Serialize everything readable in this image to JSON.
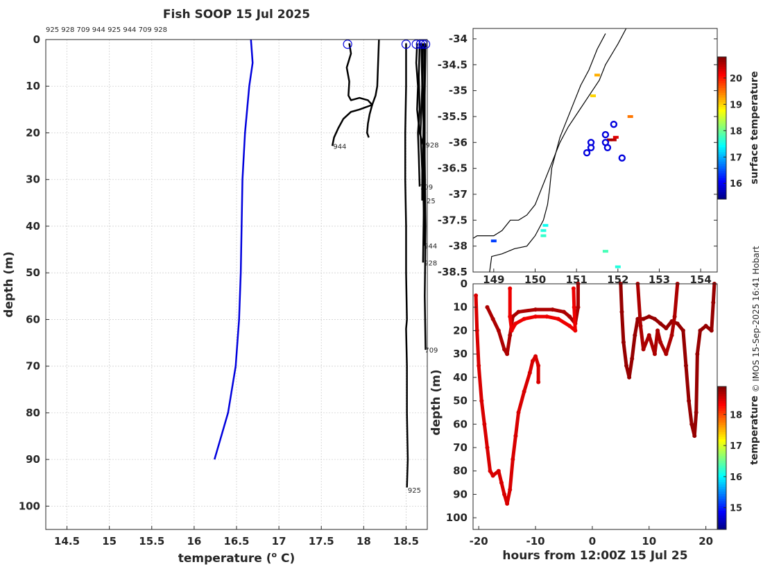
{
  "figure": {
    "credit": "© IMOS 15-Sep-2025 16:41 Hobart"
  },
  "chart_data": [
    {
      "id": "profile",
      "type": "line",
      "title": "Fish SOOP 15 Jul 2025",
      "top_id_list": "925 928 709 944 925 944 709 928",
      "xlabel": "temperature (",
      "xlabel_sup": "o",
      "xlabel_end": " C)",
      "ylabel": "depth (m)",
      "xlim": [
        14.25,
        18.75
      ],
      "ylim": [
        105,
        0
      ],
      "xticks": [
        14.5,
        15,
        15.5,
        16,
        16.5,
        17,
        17.5,
        18,
        18.5
      ],
      "yticks": [
        0,
        10,
        20,
        30,
        40,
        50,
        60,
        70,
        80,
        90,
        100
      ],
      "grid": true,
      "reference_profile": {
        "color": "#0000dd",
        "points": [
          [
            16.67,
            0
          ],
          [
            16.69,
            5
          ],
          [
            16.65,
            10
          ],
          [
            16.6,
            20
          ],
          [
            16.57,
            30
          ],
          [
            16.56,
            40
          ],
          [
            16.55,
            50
          ],
          [
            16.53,
            60
          ],
          [
            16.49,
            70
          ],
          [
            16.4,
            80
          ],
          [
            16.24,
            90
          ]
        ]
      },
      "surface_markers": [
        17.81,
        18.5,
        18.62,
        18.67,
        18.7,
        18.73
      ],
      "profiles": [
        {
          "id": "944",
          "label_x": 17.64,
          "label_y": 22.8,
          "points": [
            [
              17.83,
              0.8
            ],
            [
              17.85,
              3
            ],
            [
              17.8,
              6
            ],
            [
              17.83,
              9
            ],
            [
              17.82,
              12
            ],
            [
              17.85,
              13
            ],
            [
              17.95,
              12.5
            ],
            [
              18.05,
              13
            ],
            [
              18.1,
              14
            ],
            [
              17.95,
              15
            ],
            [
              17.85,
              15.5
            ],
            [
              17.76,
              17
            ],
            [
              17.7,
              19
            ],
            [
              17.65,
              21
            ],
            [
              17.63,
              22.8
            ]
          ]
        },
        {
          "id": "",
          "label_x": 0,
          "label_y": 0,
          "points": [
            [
              18.18,
              0
            ],
            [
              18.17,
              5
            ],
            [
              18.16,
              10
            ],
            [
              18.14,
              12
            ],
            [
              18.1,
              14
            ],
            [
              18.07,
              16
            ],
            [
              18.05,
              18
            ],
            [
              18.04,
              20
            ],
            [
              18.06,
              21
            ]
          ]
        },
        {
          "id": "925",
          "label_x": 18.52,
          "label_y": 96.5,
          "points": [
            [
              18.5,
              0.8
            ],
            [
              18.5,
              10
            ],
            [
              18.49,
              20
            ],
            [
              18.49,
              30
            ],
            [
              18.5,
              40
            ],
            [
              18.5,
              50
            ],
            [
              18.51,
              60
            ],
            [
              18.5,
              62
            ],
            [
              18.51,
              70
            ],
            [
              18.51,
              80
            ],
            [
              18.52,
              90
            ],
            [
              18.51,
              96
            ]
          ]
        },
        {
          "id": "928",
          "label_x": 18.73,
          "label_y": 22.5,
          "points": [
            [
              18.63,
              0.8
            ],
            [
              18.62,
              5
            ],
            [
              18.64,
              10
            ],
            [
              18.63,
              15
            ],
            [
              18.66,
              20
            ],
            [
              18.7,
              22.5
            ]
          ]
        },
        {
          "id": "709",
          "label_x": 18.66,
          "label_y": 31.5,
          "points": [
            [
              18.66,
              0.8
            ],
            [
              18.65,
              8
            ],
            [
              18.66,
              15
            ],
            [
              18.64,
              20
            ],
            [
              18.65,
              25
            ],
            [
              18.66,
              31.5
            ]
          ]
        },
        {
          "id": "925",
          "label_x": 18.69,
          "label_y": 34.5,
          "points": [
            [
              18.68,
              0.8
            ],
            [
              18.69,
              10
            ],
            [
              18.67,
              20
            ],
            [
              18.69,
              28
            ],
            [
              18.69,
              34.5
            ]
          ]
        },
        {
          "id": "944",
          "label_x": 18.71,
          "label_y": 44.2,
          "points": [
            [
              18.7,
              0.8
            ],
            [
              18.69,
              10
            ],
            [
              18.71,
              20
            ],
            [
              18.7,
              30
            ],
            [
              18.71,
              38
            ],
            [
              18.72,
              44.2
            ]
          ]
        },
        {
          "id": "928",
          "label_x": 18.71,
          "label_y": 47.8,
          "points": [
            [
              18.72,
              0.8
            ],
            [
              18.71,
              12
            ],
            [
              18.7,
              25
            ],
            [
              18.71,
              35
            ],
            [
              18.7,
              47.8
            ]
          ]
        },
        {
          "id": "709",
          "label_x": 18.72,
          "label_y": 66.5,
          "points": [
            [
              18.73,
              0.8
            ],
            [
              18.72,
              12
            ],
            [
              18.72,
              25
            ],
            [
              18.73,
              40
            ],
            [
              18.72,
              55
            ],
            [
              18.73,
              66.5
            ]
          ]
        }
      ]
    },
    {
      "id": "map",
      "type": "scatter",
      "xlim": [
        148.5,
        154.4
      ],
      "ylim": [
        -38.5,
        -33.8
      ],
      "xticks": [
        149,
        150,
        151,
        152,
        153,
        154
      ],
      "xtick_labels": [
        "149",
        "150",
        "151",
        "152",
        "153",
        "154"
      ],
      "yticks": [
        -34,
        -34.5,
        -35,
        -35.5,
        -36,
        -36.5,
        -37,
        -37.5,
        -38,
        -38.5
      ],
      "coastline": [
        [
          152.2,
          -33.8
        ],
        [
          152.0,
          -34.1
        ],
        [
          151.7,
          -34.5
        ],
        [
          151.55,
          -34.8
        ],
        [
          151.3,
          -35.1
        ],
        [
          151.05,
          -35.4
        ],
        [
          150.8,
          -35.7
        ],
        [
          150.6,
          -36.0
        ],
        [
          150.45,
          -36.3
        ],
        [
          150.3,
          -36.6
        ],
        [
          150.15,
          -36.9
        ],
        [
          150.0,
          -37.2
        ],
        [
          149.8,
          -37.4
        ],
        [
          149.6,
          -37.5
        ],
        [
          149.4,
          -37.5
        ],
        [
          149.2,
          -37.7
        ],
        [
          149.0,
          -37.8
        ],
        [
          148.6,
          -37.8
        ],
        [
          148.5,
          -37.85
        ]
      ],
      "shelf_contour": [
        [
          151.7,
          -33.9
        ],
        [
          151.5,
          -34.2
        ],
        [
          151.3,
          -34.6
        ],
        [
          151.1,
          -34.9
        ],
        [
          150.95,
          -35.2
        ],
        [
          150.8,
          -35.5
        ],
        [
          150.6,
          -35.9
        ],
        [
          150.5,
          -36.2
        ],
        [
          150.4,
          -36.5
        ],
        [
          150.35,
          -36.9
        ],
        [
          150.3,
          -37.2
        ],
        [
          150.2,
          -37.5
        ],
        [
          150.0,
          -37.8
        ],
        [
          149.8,
          -38.0
        ],
        [
          149.5,
          -38.05
        ],
        [
          149.2,
          -38.15
        ],
        [
          148.95,
          -38.2
        ],
        [
          148.9,
          -38.5
        ]
      ],
      "observations": [
        [
          150.2,
          -37.7,
          17.6
        ],
        [
          150.2,
          -37.8,
          17.7
        ],
        [
          150.25,
          -37.6,
          17.5
        ],
        [
          149.0,
          -37.9,
          16.4
        ],
        [
          151.9,
          -35.95,
          20.5
        ],
        [
          151.8,
          -35.95,
          20.6
        ],
        [
          151.95,
          -35.9,
          20.3
        ],
        [
          151.5,
          -34.7,
          19.2
        ],
        [
          151.4,
          -35.1,
          19.0
        ],
        [
          151.7,
          -38.1,
          17.8
        ],
        [
          152.0,
          -38.4,
          17.6
        ],
        [
          152.3,
          -35.5,
          19.5
        ]
      ],
      "stations": [
        [
          151.9,
          -35.65
        ],
        [
          151.7,
          -35.85
        ],
        [
          151.7,
          -36.0
        ],
        [
          151.35,
          -36.0
        ],
        [
          151.35,
          -36.1
        ],
        [
          151.25,
          -36.2
        ],
        [
          151.75,
          -36.1
        ],
        [
          152.1,
          -36.3
        ]
      ],
      "colorbar": {
        "label": "surface temperature",
        "range": [
          15.4,
          20.8
        ],
        "ticks": [
          16,
          17,
          18,
          19,
          20
        ]
      }
    },
    {
      "id": "timeseries",
      "type": "scatter",
      "xlabel": "hours from 12:00Z 15 Jul 25",
      "ylabel": "depth (m)",
      "xlim": [
        -21,
        22
      ],
      "ylim": [
        105,
        0
      ],
      "xticks": [
        -20,
        -10,
        0,
        10,
        20
      ],
      "yticks": [
        0,
        10,
        20,
        30,
        40,
        50,
        60,
        70,
        80,
        90,
        100
      ],
      "colorbar": {
        "label": "temperature",
        "range": [
          14.3,
          18.9
        ],
        "ticks": [
          15,
          16,
          17,
          18
        ]
      },
      "tracks": [
        {
          "t": 18.7,
          "points": [
            [
              -18.5,
              10
            ],
            [
              -17.5,
              15
            ],
            [
              -16.5,
              20
            ],
            [
              -15.5,
              28
            ],
            [
              -15,
              30
            ],
            [
              -14.5,
              22
            ],
            [
              -14,
              14
            ],
            [
              -13,
              12
            ],
            [
              -10,
              11
            ],
            [
              -7,
              11
            ],
            [
              -5,
              12
            ],
            [
              -4,
              14
            ],
            [
              -3,
              17
            ],
            [
              -2.5,
              10
            ],
            [
              -2.5,
              0
            ]
          ]
        },
        {
          "t": 18.4,
          "points": [
            [
              -14.5,
              2
            ],
            [
              -14.5,
              14
            ],
            [
              -14.2,
              20
            ],
            [
              -13.5,
              17
            ],
            [
              -12,
              15
            ],
            [
              -10,
              14
            ],
            [
              -8,
              14
            ],
            [
              -6,
              15
            ],
            [
              -4,
              18
            ],
            [
              -3,
              20
            ],
            [
              -3.2,
              10
            ],
            [
              -3.3,
              2
            ]
          ]
        },
        {
          "t": 18.5,
          "points": [
            [
              -20.5,
              5
            ],
            [
              -20.3,
              20
            ],
            [
              -20,
              35
            ],
            [
              -19.5,
              50
            ],
            [
              -19,
              60
            ],
            [
              -18.5,
              70
            ],
            [
              -18,
              80
            ],
            [
              -17.5,
              82
            ],
            [
              -16.5,
              80
            ],
            [
              -16,
              85
            ],
            [
              -15.5,
              90
            ],
            [
              -15,
              94
            ],
            [
              -14.5,
              88
            ],
            [
              -14,
              75
            ],
            [
              -13.5,
              65
            ],
            [
              -13,
              55
            ],
            [
              -12,
              46
            ],
            [
              -11,
              38
            ],
            [
              -10.5,
              33
            ],
            [
              -10,
              31
            ],
            [
              -9.5,
              35
            ],
            [
              -9.5,
              42
            ]
          ]
        },
        {
          "t": 18.8,
          "points": [
            [
              5,
              0
            ],
            [
              5.2,
              12
            ],
            [
              5.5,
              25
            ],
            [
              6,
              35
            ],
            [
              6.5,
              40
            ],
            [
              7,
              32
            ],
            [
              7.5,
              22
            ],
            [
              8,
              15
            ],
            [
              9,
              15
            ],
            [
              10,
              14
            ],
            [
              11,
              15
            ],
            [
              12,
              17
            ],
            [
              13,
              19
            ],
            [
              14,
              16
            ],
            [
              15,
              17
            ],
            [
              16,
              20
            ],
            [
              16.5,
              35
            ],
            [
              17,
              50
            ],
            [
              17.5,
              60
            ],
            [
              18,
              65
            ],
            [
              18.3,
              55
            ],
            [
              18.5,
              30
            ],
            [
              19,
              20
            ],
            [
              20,
              18
            ],
            [
              21,
              20
            ],
            [
              21.3,
              8
            ],
            [
              21.5,
              0
            ]
          ]
        },
        {
          "t": 18.7,
          "points": [
            [
              8,
              0
            ],
            [
              8.5,
              18
            ],
            [
              9,
              28
            ],
            [
              10,
              22
            ],
            [
              11,
              30
            ],
            [
              11.5,
              20
            ],
            [
              12,
              25
            ],
            [
              13,
              30
            ],
            [
              14,
              22
            ],
            [
              14.5,
              14
            ],
            [
              15,
              0
            ]
          ]
        }
      ]
    }
  ]
}
